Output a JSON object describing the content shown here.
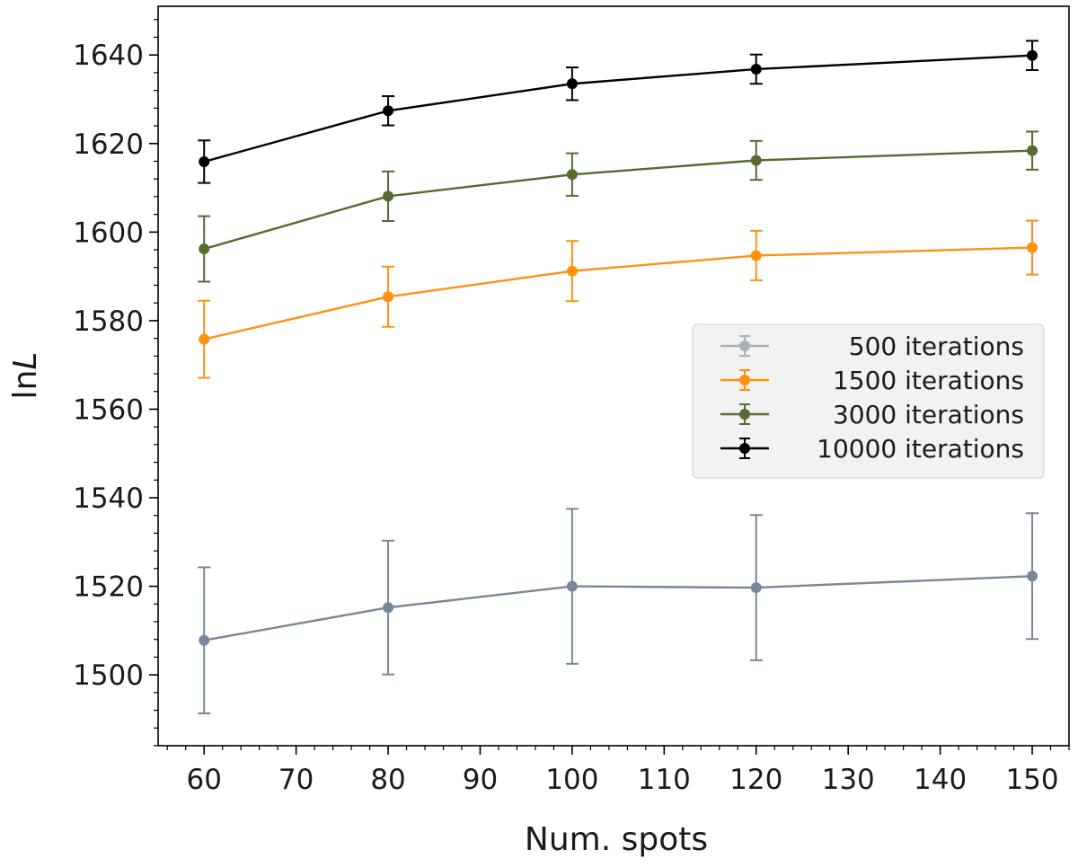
{
  "chart_data": {
    "type": "line",
    "xlabel": "Num. spots",
    "ylabel_prefix": "ln",
    "ylabel_italic": "L",
    "xlim": [
      55,
      154
    ],
    "ylim": [
      1484,
      1651
    ],
    "x_ticks": [
      60,
      70,
      80,
      90,
      100,
      110,
      120,
      130,
      140,
      150
    ],
    "y_ticks": [
      1500,
      1520,
      1540,
      1560,
      1580,
      1600,
      1620,
      1640
    ],
    "x_minor_step": 2,
    "y_minor_step": 4,
    "grid": false,
    "legend_position": "center-right",
    "x": [
      60,
      80,
      100,
      120,
      150
    ],
    "series": [
      {
        "name": "500 iterations",
        "legend_color": "#a9b0b8",
        "line_color": "#778899",
        "values": [
          1507.8,
          1515.2,
          1520.0,
          1519.7,
          1522.3
        ],
        "errors": [
          16.5,
          15.1,
          17.5,
          16.4,
          14.2
        ]
      },
      {
        "name": "1500 iterations",
        "legend_color": "#ff9010",
        "line_color": "#ff9010",
        "values": [
          1575.8,
          1585.4,
          1591.2,
          1594.7,
          1596.5
        ],
        "errors": [
          8.7,
          6.8,
          6.8,
          5.6,
          6.1
        ]
      },
      {
        "name": "3000 iterations",
        "legend_color": "#556b2f",
        "line_color": "#556b2f",
        "values": [
          1596.2,
          1608.1,
          1613.0,
          1616.2,
          1618.4
        ],
        "errors": [
          7.4,
          5.6,
          4.8,
          4.4,
          4.3
        ]
      },
      {
        "name": "10000 iterations",
        "legend_color": "#000000",
        "line_color": "#000000",
        "values": [
          1615.9,
          1627.4,
          1633.5,
          1636.8,
          1639.9
        ],
        "errors": [
          4.8,
          3.3,
          3.7,
          3.3,
          3.3
        ]
      }
    ]
  }
}
